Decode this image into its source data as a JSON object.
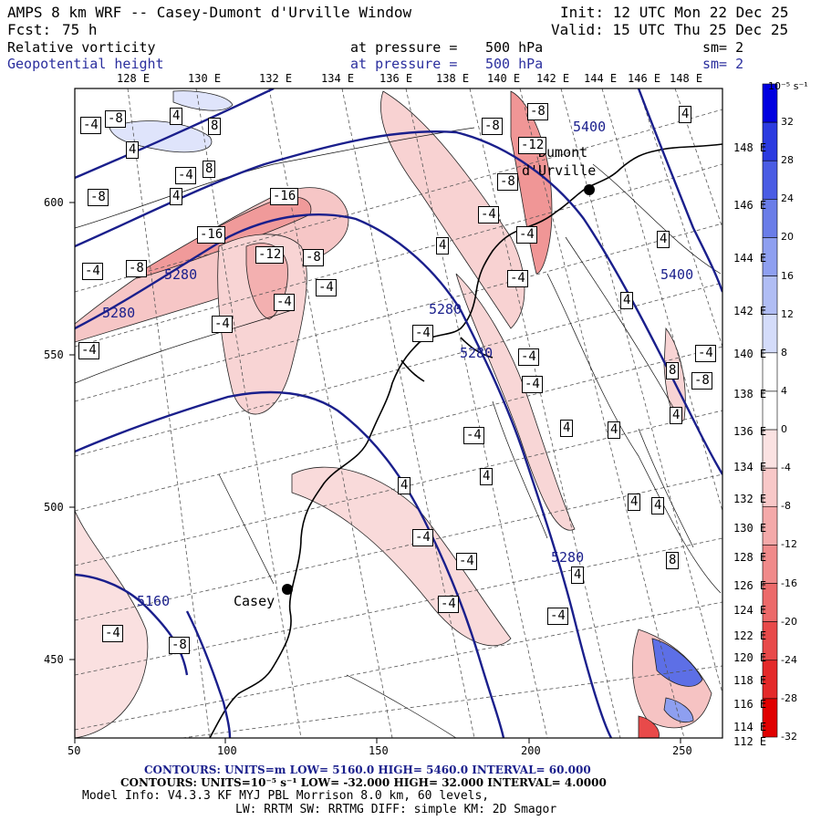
{
  "header": {
    "model_title": "AMPS 8 km WRF -- Casey-Dumont d'Urville Window",
    "init": "Init: 12 UTC Mon 22 Dec 25",
    "fcst_label": "Fcst:",
    "fcst_value": "75 h",
    "valid": "Valid: 15 UTC Thu 25 Dec 25",
    "field1_name": "Relative vorticity",
    "field1_level": "at pressure =",
    "field1_level_value": "500 hPa",
    "field1_sm": "sm= 2",
    "field2_name": "Geopotential height",
    "field2_level": "at pressure =",
    "field2_level_value": "500 hPa",
    "field2_sm": "sm= 2"
  },
  "axes": {
    "x_ticks": [
      "50",
      "100",
      "150",
      "200",
      "250"
    ],
    "y_ticks": [
      "450",
      "500",
      "550",
      "600"
    ],
    "top_lon_labels": [
      "128 E",
      "130 E",
      "132 E",
      "134 E",
      "136 E",
      "138 E",
      "140 E",
      "142 E",
      "144 E",
      "146 E",
      "148 E"
    ],
    "right_lon_labels": [
      "148 E",
      "146 E",
      "144 E",
      "142 E",
      "140 E",
      "138 E",
      "136 E",
      "134 E",
      "132 E",
      "130 E",
      "128 E",
      "126 E",
      "124 E",
      "122 E",
      "120 E",
      "118 E",
      "116 E",
      "114 E",
      "112 E"
    ]
  },
  "places": [
    {
      "name": "Casey",
      "label": "Casey"
    },
    {
      "name": "Dumont d'Urville",
      "label_line1": "Dumont",
      "label_line2": "d'Urville"
    }
  ],
  "height_contour_labels": [
    "5400",
    "5400",
    "5280",
    "5280",
    "5280",
    "5280",
    "5280",
    "5160"
  ],
  "vorticity_labels": [
    "-4",
    "-8",
    "4",
    "8",
    "4",
    "-4",
    "8",
    "4",
    "-8",
    "-16",
    "-16",
    "-12",
    "-8",
    "-8",
    "-4",
    "-4",
    "-4",
    "-4",
    "-8",
    "-8",
    "-12",
    "-8",
    "-4",
    "-4",
    "4",
    "4",
    "4",
    "-4",
    "-4",
    "-4",
    "-4",
    "-4",
    "-4",
    "4",
    "4",
    "4",
    "4",
    "4",
    "4",
    "-4",
    "-4",
    "8",
    "-8",
    "4",
    "8",
    "-4",
    "-4",
    "-8",
    "4",
    "-4",
    "-4",
    "4"
  ],
  "colorbar": {
    "unit": "10⁻⁵ s⁻¹",
    "ticks": [
      "32",
      "28",
      "24",
      "20",
      "16",
      "12",
      "8",
      "4",
      "0",
      "-4",
      "-8",
      "-12",
      "-16",
      "-20",
      "-24",
      "-28",
      "-32"
    ],
    "colors": [
      "#0000e0",
      "#2b3be0",
      "#4a5ce4",
      "#6a7de8",
      "#8e9ff0",
      "#b0bdf4",
      "#d4dcfa",
      "#ffffff",
      "#ffffff",
      "#fbe2e2",
      "#f8c8c8",
      "#f4a9a9",
      "#f08a8a",
      "#ec6a6a",
      "#e84a4a",
      "#e42a2a",
      "#e00000"
    ]
  },
  "footer": {
    "line1": "CONTOURS:  UNITS=m  LOW=  5160.0      HIGH=  5460.0      INTERVAL=  60.000",
    "line2": "CONTOURS:  UNITS=10⁻⁵ s⁻¹  LOW= -32.000      HIGH=  32.000      INTERVAL=  4.0000",
    "line3": "Model Info: V4.3.3    KF      MYJ PBL  Morrison          8.0 km,  60 levels,",
    "line4": "LW: RRTM SW: RRTMG   DIFF: simple KM: 2D Smagor"
  },
  "colors": {
    "height_contour": "#1a1f8c",
    "vort_positive": "#9aa6ee",
    "vort_negative": "#f2a6a6",
    "coast": "#000000"
  }
}
